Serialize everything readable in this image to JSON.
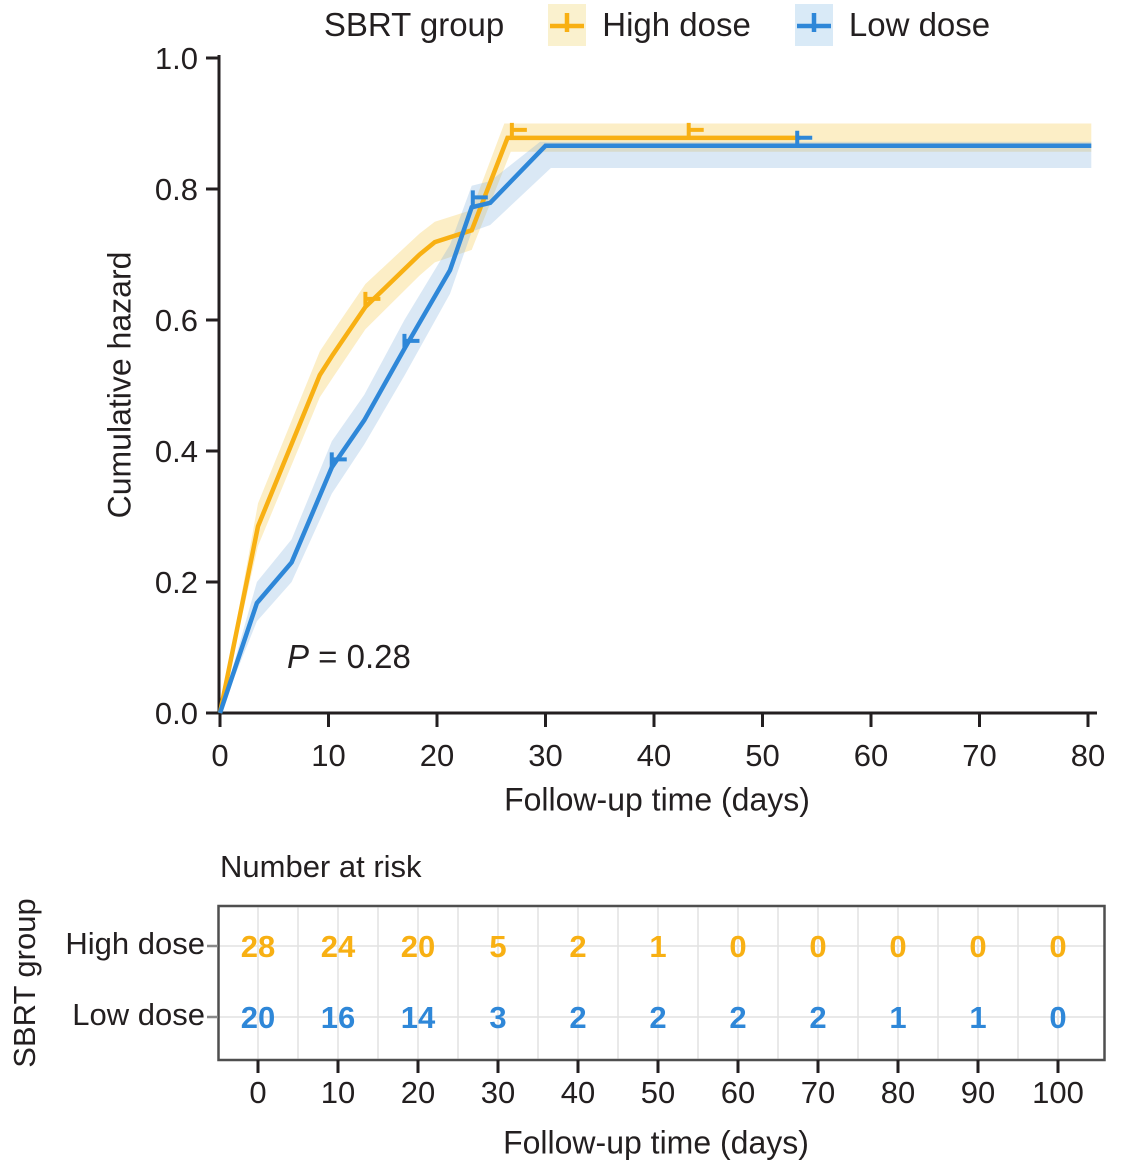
{
  "legend": {
    "title": "SBRT group",
    "items": [
      {
        "id": "high",
        "label": "High dose"
      },
      {
        "id": "low",
        "label": "Low dose"
      }
    ]
  },
  "annotation": {
    "p_italic": "P",
    "p_rest": " = 0.28"
  },
  "colors": {
    "text": "#231f20",
    "axis": "#231f20",
    "high": "#F8B013",
    "high_band": "rgba(246,205,92,0.35)",
    "high_swatch": "#FAF1CE",
    "low": "#2E87D8",
    "low_band": "rgba(122,173,219,0.28)",
    "low_swatch": "#D9EAF7",
    "table_border": "#4f4f4f",
    "table_grid": "#e2e2e2",
    "row_tick": "#8a8a8a"
  },
  "chart_data": {
    "type": "line",
    "subtype": "cumulative-hazard",
    "title": "",
    "xlabel": "Follow-up time (days)",
    "ylabel": "Cumulative hazard",
    "xlim": [
      0,
      80
    ],
    "ylim": [
      0,
      1.0
    ],
    "x_ticks": [
      0,
      10,
      20,
      30,
      40,
      50,
      60,
      70,
      80
    ],
    "y_ticks": [
      0.0,
      0.2,
      0.4,
      0.6,
      0.8,
      1.0
    ],
    "grid": false,
    "legend_position": "top",
    "annotation": "P = 0.28",
    "series": [
      {
        "name": "High dose",
        "color": "#F8B013",
        "band_color": "rgba(246,205,92,0.35)",
        "points": [
          [
            0,
            0
          ],
          [
            3.5,
            0.285
          ],
          [
            9.2,
            0.516
          ],
          [
            10.4,
            0.547
          ],
          [
            13.4,
            0.62
          ],
          [
            18.4,
            0.7
          ],
          [
            19.8,
            0.719
          ],
          [
            23.2,
            0.737
          ],
          [
            26.5,
            0.878
          ],
          [
            53.5,
            0.878
          ]
        ],
        "censor_marks": [
          [
            13.4,
            0.62
          ],
          [
            26.9,
            0.878
          ],
          [
            43.2,
            0.878
          ]
        ],
        "band_upper": [
          [
            0,
            0
          ],
          [
            3.5,
            0.32
          ],
          [
            9.2,
            0.552
          ],
          [
            10.4,
            0.582
          ],
          [
            13.4,
            0.655
          ],
          [
            18.4,
            0.732
          ],
          [
            19.8,
            0.75
          ],
          [
            23.2,
            0.768
          ],
          [
            26.2,
            0.9
          ],
          [
            80.3,
            0.9
          ]
        ],
        "band_lower": [
          [
            0,
            0
          ],
          [
            3.5,
            0.255
          ],
          [
            9.2,
            0.482
          ],
          [
            10.4,
            0.512
          ],
          [
            13.4,
            0.586
          ],
          [
            18.4,
            0.668
          ],
          [
            19.8,
            0.688
          ],
          [
            23.2,
            0.707
          ],
          [
            26.8,
            0.857
          ],
          [
            80.3,
            0.857
          ]
        ]
      },
      {
        "name": "Low dose",
        "color": "#2E87D8",
        "band_color": "rgba(122,173,219,0.28)",
        "points": [
          [
            0,
            0
          ],
          [
            3.4,
            0.168
          ],
          [
            6.6,
            0.23
          ],
          [
            10.3,
            0.375
          ],
          [
            13.3,
            0.447
          ],
          [
            17,
            0.556
          ],
          [
            21.2,
            0.676
          ],
          [
            23.2,
            0.772
          ],
          [
            24.9,
            0.779
          ],
          [
            30,
            0.866
          ],
          [
            80.3,
            0.866
          ]
        ],
        "censor_marks": [
          [
            10.3,
            0.375
          ],
          [
            17,
            0.556
          ],
          [
            23.3,
            0.775
          ],
          [
            53.2,
            0.866
          ]
        ],
        "band_upper": [
          [
            0,
            0
          ],
          [
            3.4,
            0.2
          ],
          [
            6.6,
            0.265
          ],
          [
            10.3,
            0.415
          ],
          [
            13.3,
            0.486
          ],
          [
            17,
            0.6
          ],
          [
            21.2,
            0.715
          ],
          [
            23.2,
            0.805
          ],
          [
            24.9,
            0.812
          ],
          [
            29.5,
            0.872
          ],
          [
            80.3,
            0.872
          ]
        ],
        "band_lower": [
          [
            0,
            0
          ],
          [
            3.4,
            0.14
          ],
          [
            6.6,
            0.2
          ],
          [
            10.3,
            0.335
          ],
          [
            13.3,
            0.41
          ],
          [
            17,
            0.515
          ],
          [
            21.2,
            0.64
          ],
          [
            23.2,
            0.735
          ],
          [
            24.9,
            0.745
          ],
          [
            30.5,
            0.832
          ],
          [
            80.3,
            0.832
          ]
        ]
      }
    ],
    "risk_table": {
      "title": "Number at risk",
      "group_label": "SBRT group",
      "xlabel": "Follow-up time (days)",
      "times": [
        0,
        10,
        20,
        30,
        40,
        50,
        60,
        70,
        80,
        90,
        100
      ],
      "rows": [
        {
          "label": "High dose",
          "color": "#F8B013",
          "values": [
            28,
            24,
            20,
            5,
            2,
            1,
            0,
            0,
            0,
            0,
            0
          ]
        },
        {
          "label": "Low dose",
          "color": "#2E87D8",
          "values": [
            20,
            16,
            14,
            3,
            2,
            2,
            2,
            2,
            1,
            1,
            0
          ]
        }
      ]
    }
  }
}
